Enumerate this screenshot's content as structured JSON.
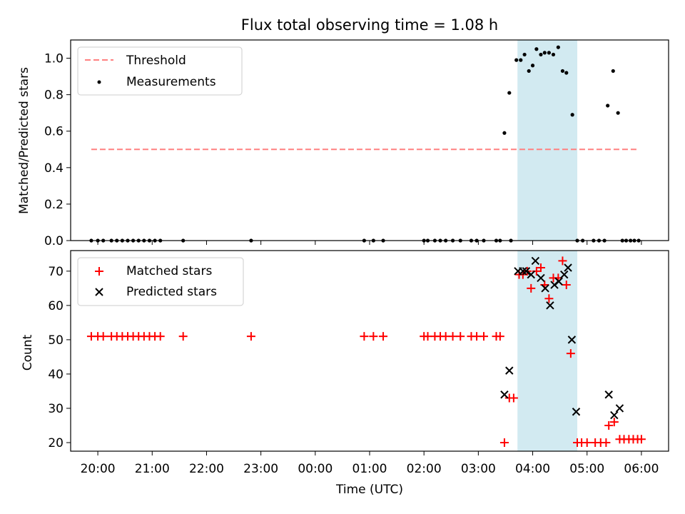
{
  "chart_data": [
    {
      "type": "scatter",
      "title": "Flux total observing time = 1.08 h",
      "ylabel": "Matched/Predicted stars",
      "xlim": [
        -0.5,
        10.5
      ],
      "ylim": [
        0,
        1.1
      ],
      "yticks": [
        0.0,
        0.2,
        0.4,
        0.6,
        0.8,
        1.0
      ],
      "ytick_labels": [
        "0.0",
        "0.2",
        "0.4",
        "0.6",
        "0.8",
        "1.0"
      ],
      "shaded_span": [
        7.72,
        8.82
      ],
      "shade_color": "#add8e6",
      "legend_position": "upper left",
      "threshold": {
        "name": "Threshold",
        "value": 0.5,
        "x_range": [
          -0.12,
          9.95
        ],
        "color": "#ff8080"
      },
      "series": [
        {
          "name": "Measurements",
          "color": "#000000",
          "points": [
            [
              -0.12,
              0
            ],
            [
              0,
              0
            ],
            [
              0.1,
              0
            ],
            [
              0.25,
              0
            ],
            [
              0.35,
              0
            ],
            [
              0.45,
              0
            ],
            [
              0.55,
              0
            ],
            [
              0.65,
              0
            ],
            [
              0.75,
              0
            ],
            [
              0.85,
              0
            ],
            [
              0.95,
              0
            ],
            [
              1.05,
              0
            ],
            [
              1.15,
              0
            ],
            [
              1.57,
              0
            ],
            [
              2.82,
              0
            ],
            [
              4.9,
              0
            ],
            [
              5.07,
              0
            ],
            [
              5.25,
              0
            ],
            [
              6.0,
              0
            ],
            [
              6.07,
              0
            ],
            [
              6.2,
              0
            ],
            [
              6.3,
              0
            ],
            [
              6.4,
              0
            ],
            [
              6.53,
              0
            ],
            [
              6.67,
              0
            ],
            [
              6.87,
              0
            ],
            [
              6.97,
              0
            ],
            [
              7.1,
              0
            ],
            [
              7.33,
              0
            ],
            [
              7.4,
              0
            ],
            [
              7.6,
              0
            ],
            [
              7.48,
              0.59
            ],
            [
              7.57,
              0.81
            ],
            [
              7.7,
              0.99
            ],
            [
              7.78,
              0.99
            ],
            [
              7.85,
              1.02
            ],
            [
              7.93,
              0.93
            ],
            [
              8.0,
              0.96
            ],
            [
              8.07,
              1.05
            ],
            [
              8.15,
              1.02
            ],
            [
              8.22,
              1.03
            ],
            [
              8.3,
              1.03
            ],
            [
              8.38,
              1.02
            ],
            [
              8.47,
              1.06
            ],
            [
              8.55,
              0.93
            ],
            [
              8.62,
              0.92
            ],
            [
              8.73,
              0.69
            ],
            [
              8.82,
              0
            ],
            [
              8.92,
              0
            ],
            [
              9.12,
              0
            ],
            [
              9.22,
              0
            ],
            [
              9.32,
              0
            ],
            [
              9.38,
              0.74
            ],
            [
              9.48,
              0.93
            ],
            [
              9.57,
              0.7
            ],
            [
              9.65,
              0
            ],
            [
              9.72,
              0
            ],
            [
              9.8,
              0
            ],
            [
              9.87,
              0
            ],
            [
              9.95,
              0
            ]
          ]
        }
      ]
    },
    {
      "type": "scatter",
      "xlabel": "Time (UTC)",
      "ylabel": "Count",
      "xlim": [
        -0.5,
        10.5
      ],
      "ylim": [
        17.5,
        76
      ],
      "yticks": [
        20,
        30,
        40,
        50,
        60,
        70
      ],
      "ytick_labels": [
        "20",
        "30",
        "40",
        "50",
        "60",
        "70"
      ],
      "xticks": [
        0,
        1,
        2,
        3,
        4,
        5,
        6,
        7,
        8,
        9,
        10
      ],
      "xtick_labels": [
        "20:00",
        "21:00",
        "22:00",
        "23:00",
        "00:00",
        "01:00",
        "02:00",
        "03:00",
        "04:00",
        "05:00",
        "06:00"
      ],
      "shaded_span": [
        7.72,
        8.82
      ],
      "shade_color": "#add8e6",
      "legend_position": "upper left",
      "series": [
        {
          "name": "Matched stars",
          "marker": "plus",
          "color": "#ff0000",
          "points": [
            [
              -0.12,
              51
            ],
            [
              0,
              51
            ],
            [
              0.1,
              51
            ],
            [
              0.25,
              51
            ],
            [
              0.35,
              51
            ],
            [
              0.45,
              51
            ],
            [
              0.55,
              51
            ],
            [
              0.65,
              51
            ],
            [
              0.75,
              51
            ],
            [
              0.85,
              51
            ],
            [
              0.95,
              51
            ],
            [
              1.05,
              51
            ],
            [
              1.15,
              51
            ],
            [
              1.57,
              51
            ],
            [
              2.82,
              51
            ],
            [
              4.9,
              51
            ],
            [
              5.07,
              51
            ],
            [
              5.25,
              51
            ],
            [
              6.0,
              51
            ],
            [
              6.07,
              51
            ],
            [
              6.2,
              51
            ],
            [
              6.3,
              51
            ],
            [
              6.4,
              51
            ],
            [
              6.53,
              51
            ],
            [
              6.67,
              51
            ],
            [
              6.87,
              51
            ],
            [
              6.97,
              51
            ],
            [
              7.1,
              51
            ],
            [
              7.33,
              51
            ],
            [
              7.4,
              51
            ],
            [
              7.48,
              20
            ],
            [
              7.57,
              33
            ],
            [
              7.65,
              33
            ],
            [
              7.75,
              69
            ],
            [
              7.82,
              69
            ],
            [
              7.9,
              70
            ],
            [
              7.97,
              65
            ],
            [
              8.07,
              70
            ],
            [
              8.15,
              71
            ],
            [
              8.22,
              66
            ],
            [
              8.3,
              62
            ],
            [
              8.38,
              68
            ],
            [
              8.47,
              68
            ],
            [
              8.55,
              73
            ],
            [
              8.62,
              66
            ],
            [
              8.7,
              46
            ],
            [
              8.82,
              20
            ],
            [
              8.9,
              20
            ],
            [
              9.0,
              20
            ],
            [
              9.15,
              20
            ],
            [
              9.25,
              20
            ],
            [
              9.35,
              20
            ],
            [
              9.4,
              25
            ],
            [
              9.5,
              26
            ],
            [
              9.6,
              21
            ],
            [
              9.68,
              21
            ],
            [
              9.77,
              21
            ],
            [
              9.85,
              21
            ],
            [
              9.93,
              21
            ],
            [
              10.0,
              21
            ]
          ]
        },
        {
          "name": "Predicted stars",
          "marker": "x",
          "color": "#000000",
          "points": [
            [
              7.48,
              34
            ],
            [
              7.57,
              41
            ],
            [
              7.73,
              70
            ],
            [
              7.82,
              70
            ],
            [
              7.88,
              70
            ],
            [
              7.97,
              69
            ],
            [
              8.05,
              73
            ],
            [
              8.15,
              68
            ],
            [
              8.23,
              65
            ],
            [
              8.32,
              60
            ],
            [
              8.4,
              66
            ],
            [
              8.48,
              67
            ],
            [
              8.58,
              69
            ],
            [
              8.65,
              71
            ],
            [
              8.72,
              50
            ],
            [
              8.8,
              29
            ],
            [
              9.4,
              34
            ],
            [
              9.5,
              28
            ],
            [
              9.6,
              30
            ]
          ]
        }
      ]
    }
  ]
}
